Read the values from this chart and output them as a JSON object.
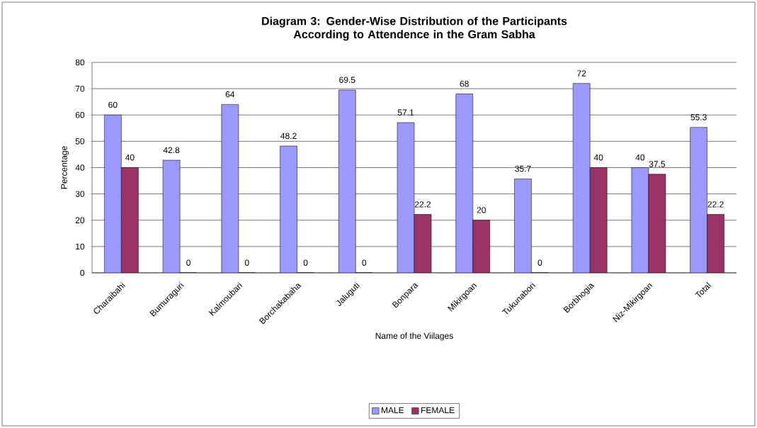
{
  "chart_data": {
    "type": "bar",
    "title": "Diagram 3: Gender-Wise Distribution of the Participants According to Attendence in the Gram Sabha",
    "xlabel": "Name of the Viilages",
    "ylabel": "Percentage",
    "categories": [
      "Charaibahi",
      "Bumuraguri",
      "Kalmoubari",
      "Borchakabaha",
      "Jaluguti",
      "Bonpara",
      "Mikirgoan",
      "Tukunabori",
      "Borbhogia",
      "Niz-Mikirgoan",
      "Total"
    ],
    "series": [
      {
        "name": "MALE",
        "color": "#9999ff",
        "values": [
          60,
          42.8,
          64,
          48.2,
          69.5,
          57.1,
          68,
          35.7,
          72,
          40,
          55.3
        ]
      },
      {
        "name": "FEMALE",
        "color": "#993366",
        "values": [
          40,
          0,
          0,
          0,
          0,
          22.2,
          20,
          0,
          40,
          37.5,
          22.2
        ]
      }
    ],
    "ylim": [
      0,
      80
    ],
    "yticks": [
      0,
      10,
      20,
      30,
      40,
      50,
      60,
      70,
      80
    ],
    "grid": "y",
    "legend": "bottom",
    "data_labels": true
  }
}
